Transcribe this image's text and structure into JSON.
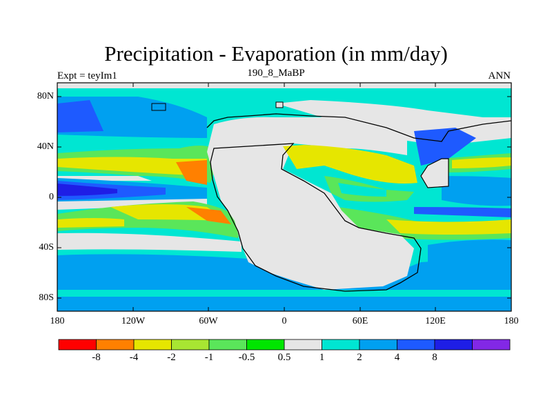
{
  "map": {
    "title": "Precipitation - Evaporation (in mm/day)",
    "left_label": "Expt = teyIm1",
    "center_label": "190_8_MaBP",
    "right_label": "ANN",
    "lat_ticks": [
      "80N",
      "40N",
      "0",
      "40S",
      "80S"
    ],
    "lon_ticks": [
      "180",
      "120W",
      "60W",
      "0",
      "60E",
      "120E",
      "180"
    ],
    "colors": {
      "red": "#ff0000",
      "orange": "#ff8000",
      "yellow": "#e6e600",
      "yellow_green": "#a8e632",
      "light_green": "#5ae65a",
      "green": "#00e600",
      "gray": "#e6e6e6",
      "cyan": "#00e6d2",
      "sky": "#00a0f0",
      "blue": "#1e5aff",
      "dark_blue": "#1e1ee6",
      "purple": "#8228e6"
    }
  },
  "colorbar": {
    "labels": [
      "-8",
      "-4",
      "-2",
      "-1",
      "-0.5",
      "0.5",
      "1",
      "2",
      "4",
      "8"
    ],
    "colors": [
      "#ff0000",
      "#ff8000",
      "#e6e600",
      "#a8e632",
      "#5ae65a",
      "#00e600",
      "#e6e6e6",
      "#00e6d2",
      "#00a0f0",
      "#1e5aff",
      "#1e1ee6",
      "#8228e6"
    ]
  }
}
